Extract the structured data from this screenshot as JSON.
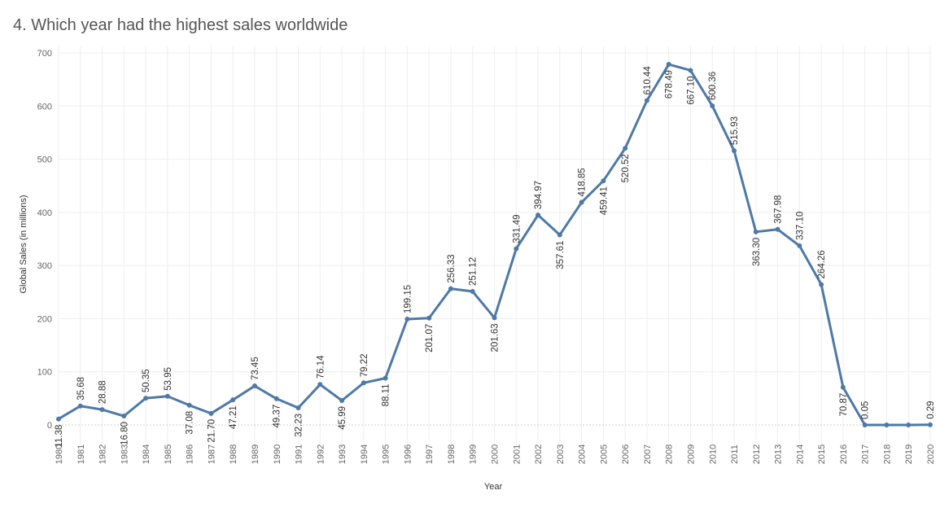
{
  "chart_data": {
    "type": "line",
    "title": "4. Which year had the highest sales worldwide",
    "xlabel": "Year",
    "ylabel": "Global Sales (in millions)",
    "ylim": [
      0,
      700
    ],
    "yticks": [
      0,
      100,
      200,
      300,
      400,
      500,
      600,
      700
    ],
    "grid": true,
    "colors": {
      "line": "#4e79a7",
      "grid": "#eeeeee",
      "zero": "#d0d0d0"
    },
    "x": [
      "1980",
      "1981",
      "1982",
      "1983",
      "1984",
      "1985",
      "1986",
      "1987",
      "1988",
      "1989",
      "1990",
      "1991",
      "1992",
      "1993",
      "1994",
      "1995",
      "1996",
      "1997",
      "1998",
      "1999",
      "2000",
      "2001",
      "2002",
      "2003",
      "2004",
      "2005",
      "2006",
      "2007",
      "2008",
      "2009",
      "2010",
      "2011",
      "2012",
      "2013",
      "2014",
      "2015",
      "2016",
      "2017",
      "2018",
      "2019",
      "2020"
    ],
    "values": [
      11.38,
      35.68,
      28.88,
      16.8,
      50.35,
      53.95,
      37.08,
      21.7,
      47.21,
      73.45,
      49.37,
      32.23,
      76.14,
      45.99,
      79.22,
      88.11,
      199.15,
      201.07,
      256.33,
      251.12,
      201.63,
      331.49,
      394.97,
      357.61,
      418.85,
      459.41,
      520.52,
      610.44,
      678.49,
      667.1,
      600.36,
      515.93,
      363.3,
      367.98,
      337.1,
      264.26,
      70.87,
      0.05,
      0.0,
      0.0,
      0.29
    ],
    "labels": [
      "11.38",
      "35.68",
      "28.88",
      "16.80",
      "50.35",
      "53.95",
      "37.08",
      "21.70",
      "47.21",
      "73.45",
      "49.37",
      "32.23",
      "76.14",
      "45.99",
      "79.22",
      "88.11",
      "199.15",
      "201.07",
      "256.33",
      "251.12",
      "201.63",
      "331.49",
      "394.97",
      "357.61",
      "418.85",
      "459.41",
      "520.52",
      "610.44",
      "678.49",
      "667.10",
      "600.36",
      "515.93",
      "363.30",
      "367.98",
      "337.10",
      "264.26",
      "70.87",
      "0.05",
      "",
      "",
      "0.29"
    ],
    "label_side": [
      "below",
      "above",
      "above",
      "below",
      "above",
      "above",
      "below",
      "below",
      "below",
      "above",
      "below",
      "below",
      "above",
      "below",
      "above",
      "below",
      "above",
      "below",
      "above",
      "above",
      "below",
      "above",
      "above",
      "below",
      "above",
      "below",
      "below",
      "above",
      "below",
      "below",
      "above",
      "above",
      "below",
      "above",
      "above",
      "above",
      "below",
      "above",
      "",
      "",
      "above"
    ]
  }
}
